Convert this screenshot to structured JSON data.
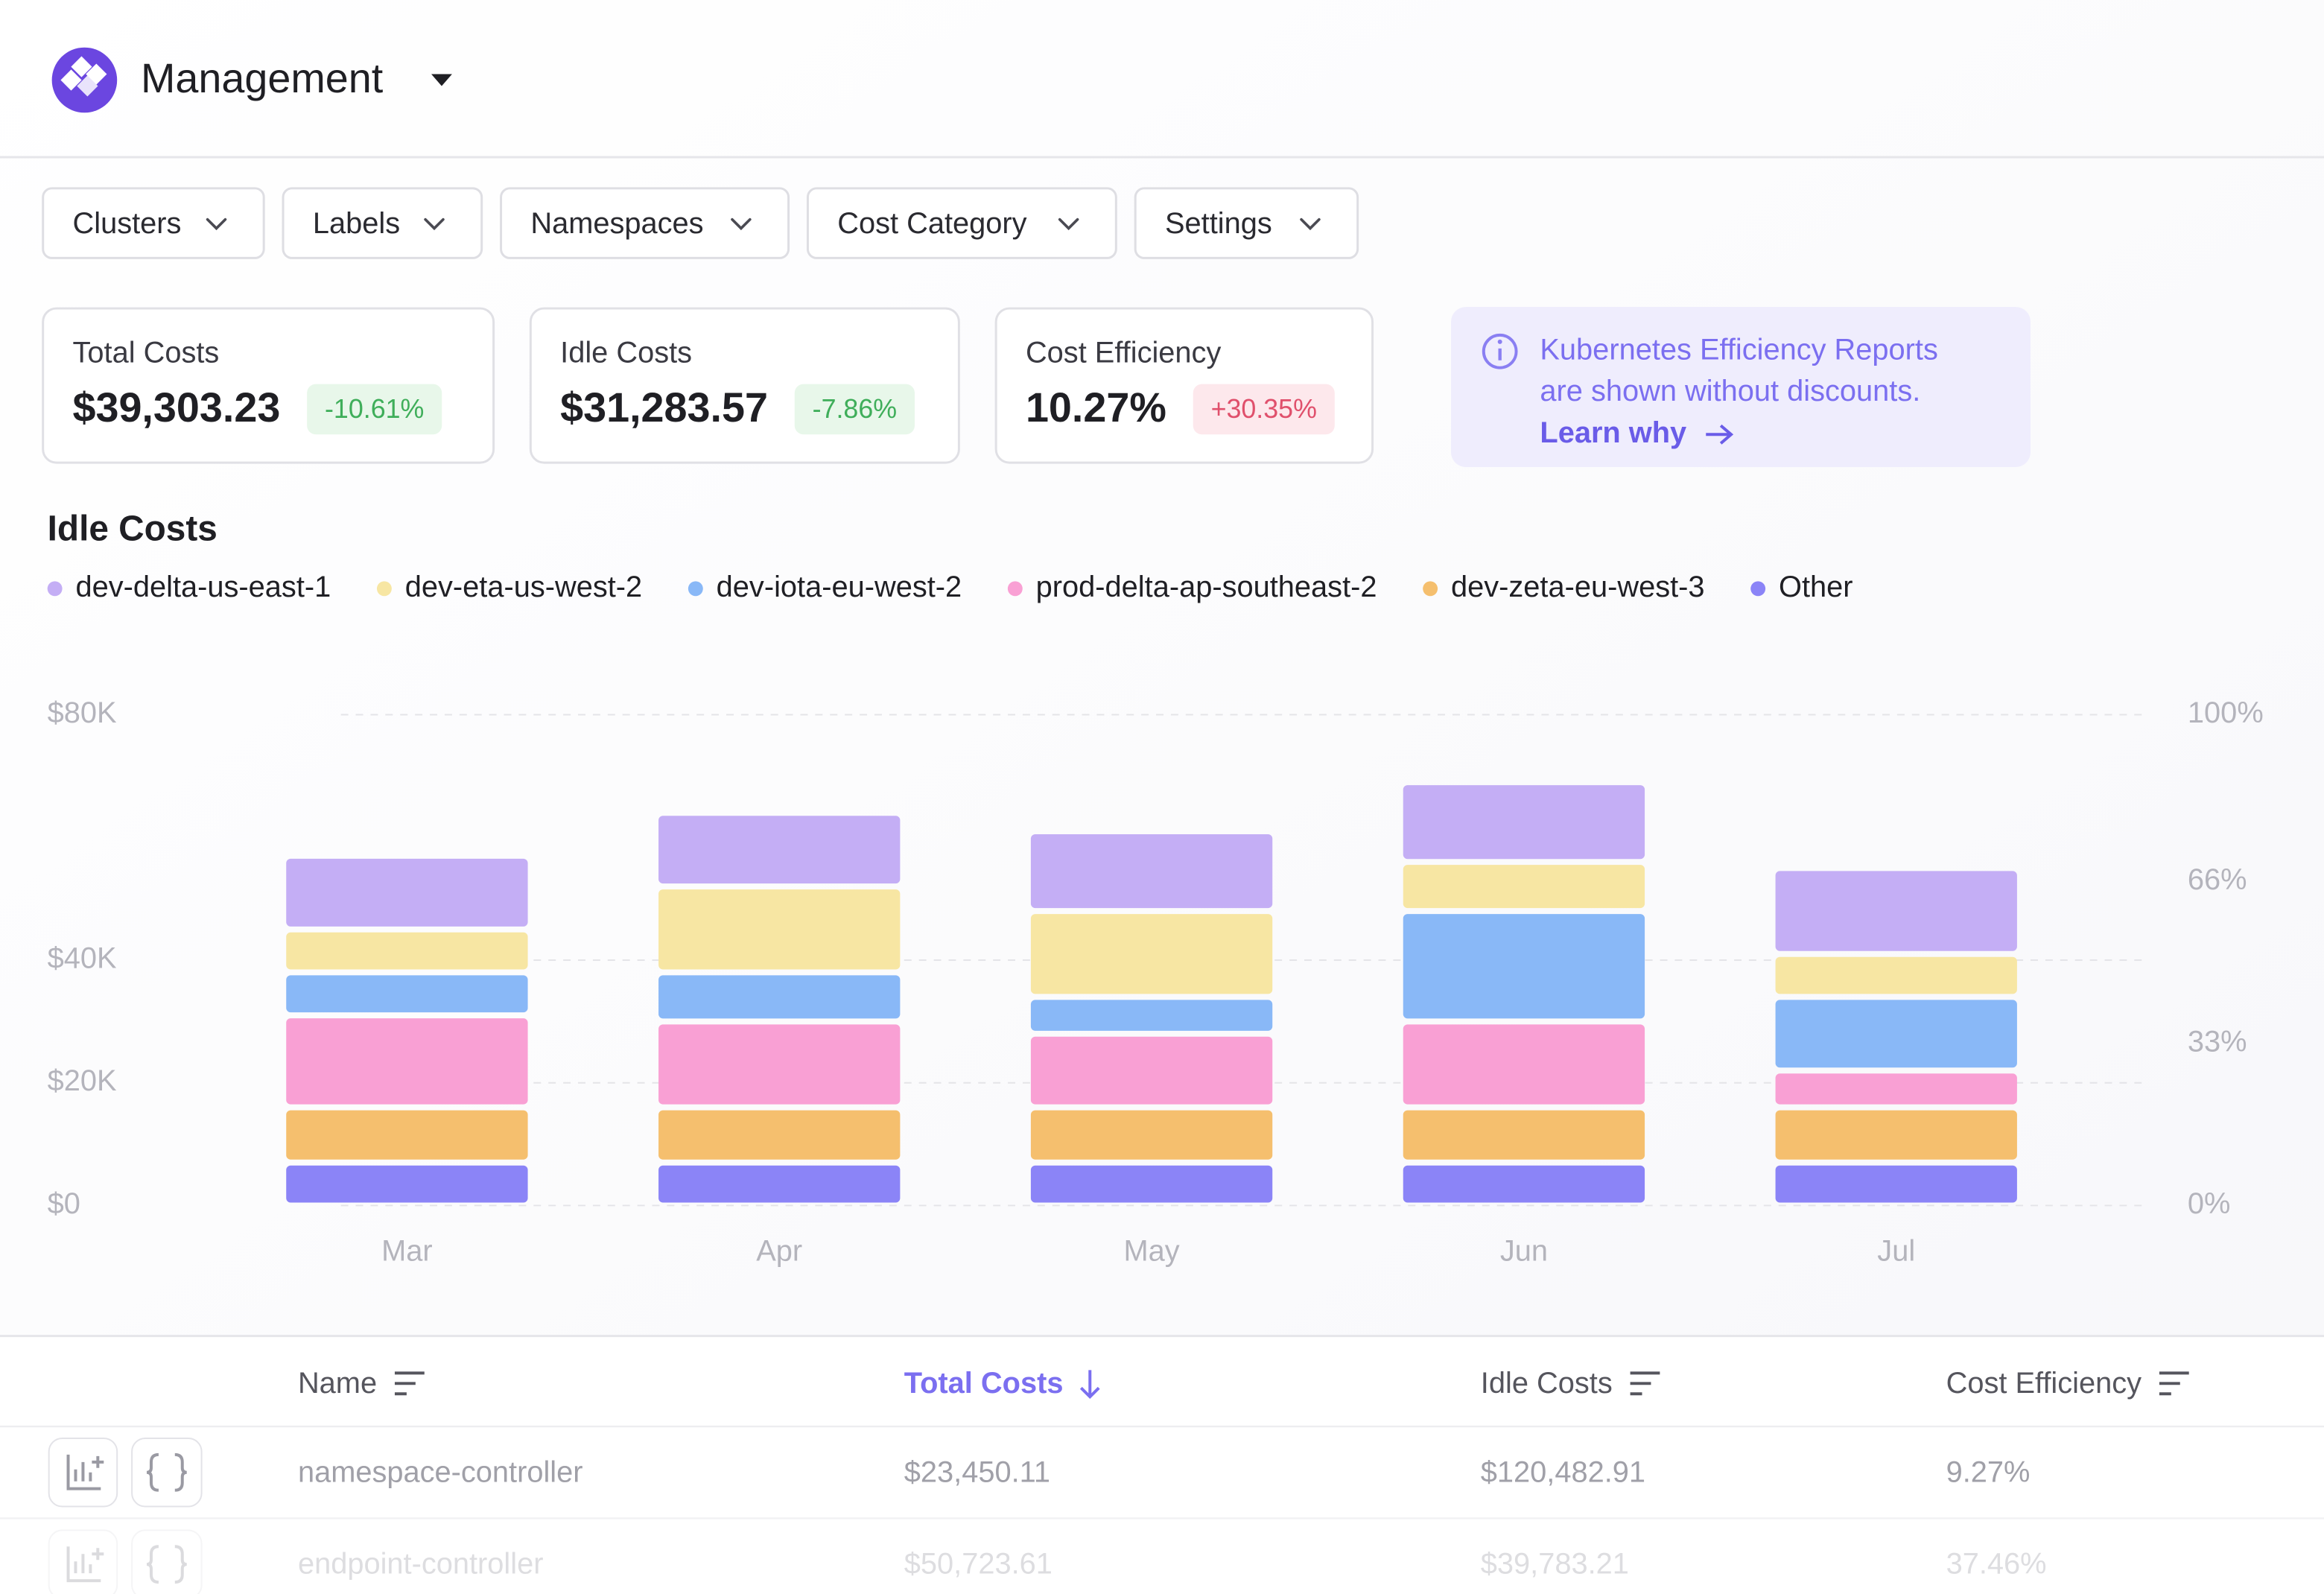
{
  "header": {
    "title": "Management"
  },
  "filters": [
    "Clusters",
    "Labels",
    "Namespaces",
    "Cost Category",
    "Settings"
  ],
  "kpis": [
    {
      "label": "Total Costs",
      "value": "$39,303.23",
      "change": "-10.61%"
    },
    {
      "label": "Idle Costs",
      "value": "$31,283.57",
      "change": "-7.86%"
    },
    {
      "label": "Cost Efficiency",
      "value": "10.27%",
      "change": "+30.35%"
    }
  ],
  "notice": {
    "lines": [
      "Kubernetes Efficiency Reports",
      "are shown without discounts."
    ],
    "link": "Learn why"
  },
  "chart_data": {
    "type": "bar",
    "stacked": true,
    "title": "Idle Costs",
    "categories": [
      "Mar",
      "Apr",
      "May",
      "Jun",
      "Jul"
    ],
    "series": [
      {
        "name": "dev-delta-us-east-1",
        "color": "#c4aef5",
        "values": [
          12000,
          12000,
          13000,
          13000,
          14000
        ]
      },
      {
        "name": "dev-eta-us-west-2",
        "color": "#f7e6a3",
        "values": [
          7000,
          14000,
          14000,
          8000,
          7000
        ]
      },
      {
        "name": "dev-iota-eu-west-2",
        "color": "#89b8f7",
        "values": [
          7000,
          8000,
          6000,
          18000,
          12000
        ]
      },
      {
        "name": "prod-delta-ap-southeast-2",
        "color": "#f9a0d4",
        "values": [
          15000,
          14000,
          12000,
          14000,
          6000
        ]
      },
      {
        "name": "dev-zeta-eu-west-3",
        "color": "#f5bf6e",
        "values": [
          9000,
          9000,
          9000,
          9000,
          9000
        ]
      },
      {
        "name": "Other",
        "color": "#8b84f7",
        "values": [
          7000,
          7000,
          7000,
          7000,
          7000
        ]
      }
    ],
    "ylim": [
      0,
      80000
    ],
    "yticks": [
      {
        "value": 0,
        "label": "$0"
      },
      {
        "value": 20000,
        "label": "$20K"
      },
      {
        "value": 40000,
        "label": "$40K"
      },
      {
        "value": 80000,
        "label": "$80K"
      }
    ],
    "y2lim": [
      0,
      100
    ],
    "y2ticks": [
      {
        "value": 0,
        "label": "0%"
      },
      {
        "value": 33,
        "label": "33%"
      },
      {
        "value": 66,
        "label": "66%"
      },
      {
        "value": 100,
        "label": "100%"
      }
    ],
    "grid": true
  },
  "table": {
    "columns": [
      "Name",
      "Total Costs",
      "Idle Costs",
      "Cost Efficiency"
    ],
    "rows": [
      [
        "namespace-controller",
        "$23,450.11",
        "$120,482.91",
        "9.27%"
      ],
      [
        "endpoint-controller",
        "$50,723.61",
        "$39,783.21",
        "37.46%"
      ]
    ]
  }
}
